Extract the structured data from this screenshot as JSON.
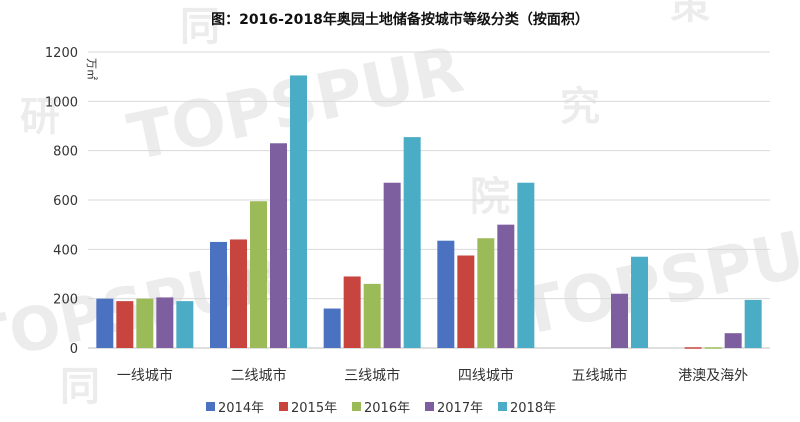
{
  "watermark": {
    "brand": "TOPSPUR",
    "chars": [
      "同",
      "策",
      "研",
      "究",
      "院"
    ]
  },
  "chart_data": {
    "type": "bar",
    "title": "图：2016-2018年奥园土地储备按城市等级分类（按面积）",
    "y_unit": "万㎡",
    "ylim": [
      0,
      1200
    ],
    "yticks": [
      0,
      200,
      400,
      600,
      800,
      1000,
      1200
    ],
    "grid": true,
    "legend_position": "bottom",
    "categories": [
      "一线城市",
      "二线城市",
      "三线城市",
      "四线城市",
      "五线城市",
      "港澳及海外"
    ],
    "series": [
      {
        "name": "2014年",
        "color": "#4A72C1",
        "values": [
          200,
          430,
          160,
          435,
          0,
          0
        ]
      },
      {
        "name": "2015年",
        "color": "#C8443F",
        "values": [
          190,
          440,
          290,
          375,
          0,
          3
        ]
      },
      {
        "name": "2016年",
        "color": "#9BBB59",
        "values": [
          200,
          595,
          260,
          445,
          0,
          3
        ]
      },
      {
        "name": "2017年",
        "color": "#7D5FA0",
        "values": [
          205,
          830,
          670,
          500,
          220,
          60
        ]
      },
      {
        "name": "2018年",
        "color": "#4BACC6",
        "values": [
          190,
          1105,
          855,
          670,
          370,
          195
        ]
      }
    ]
  }
}
